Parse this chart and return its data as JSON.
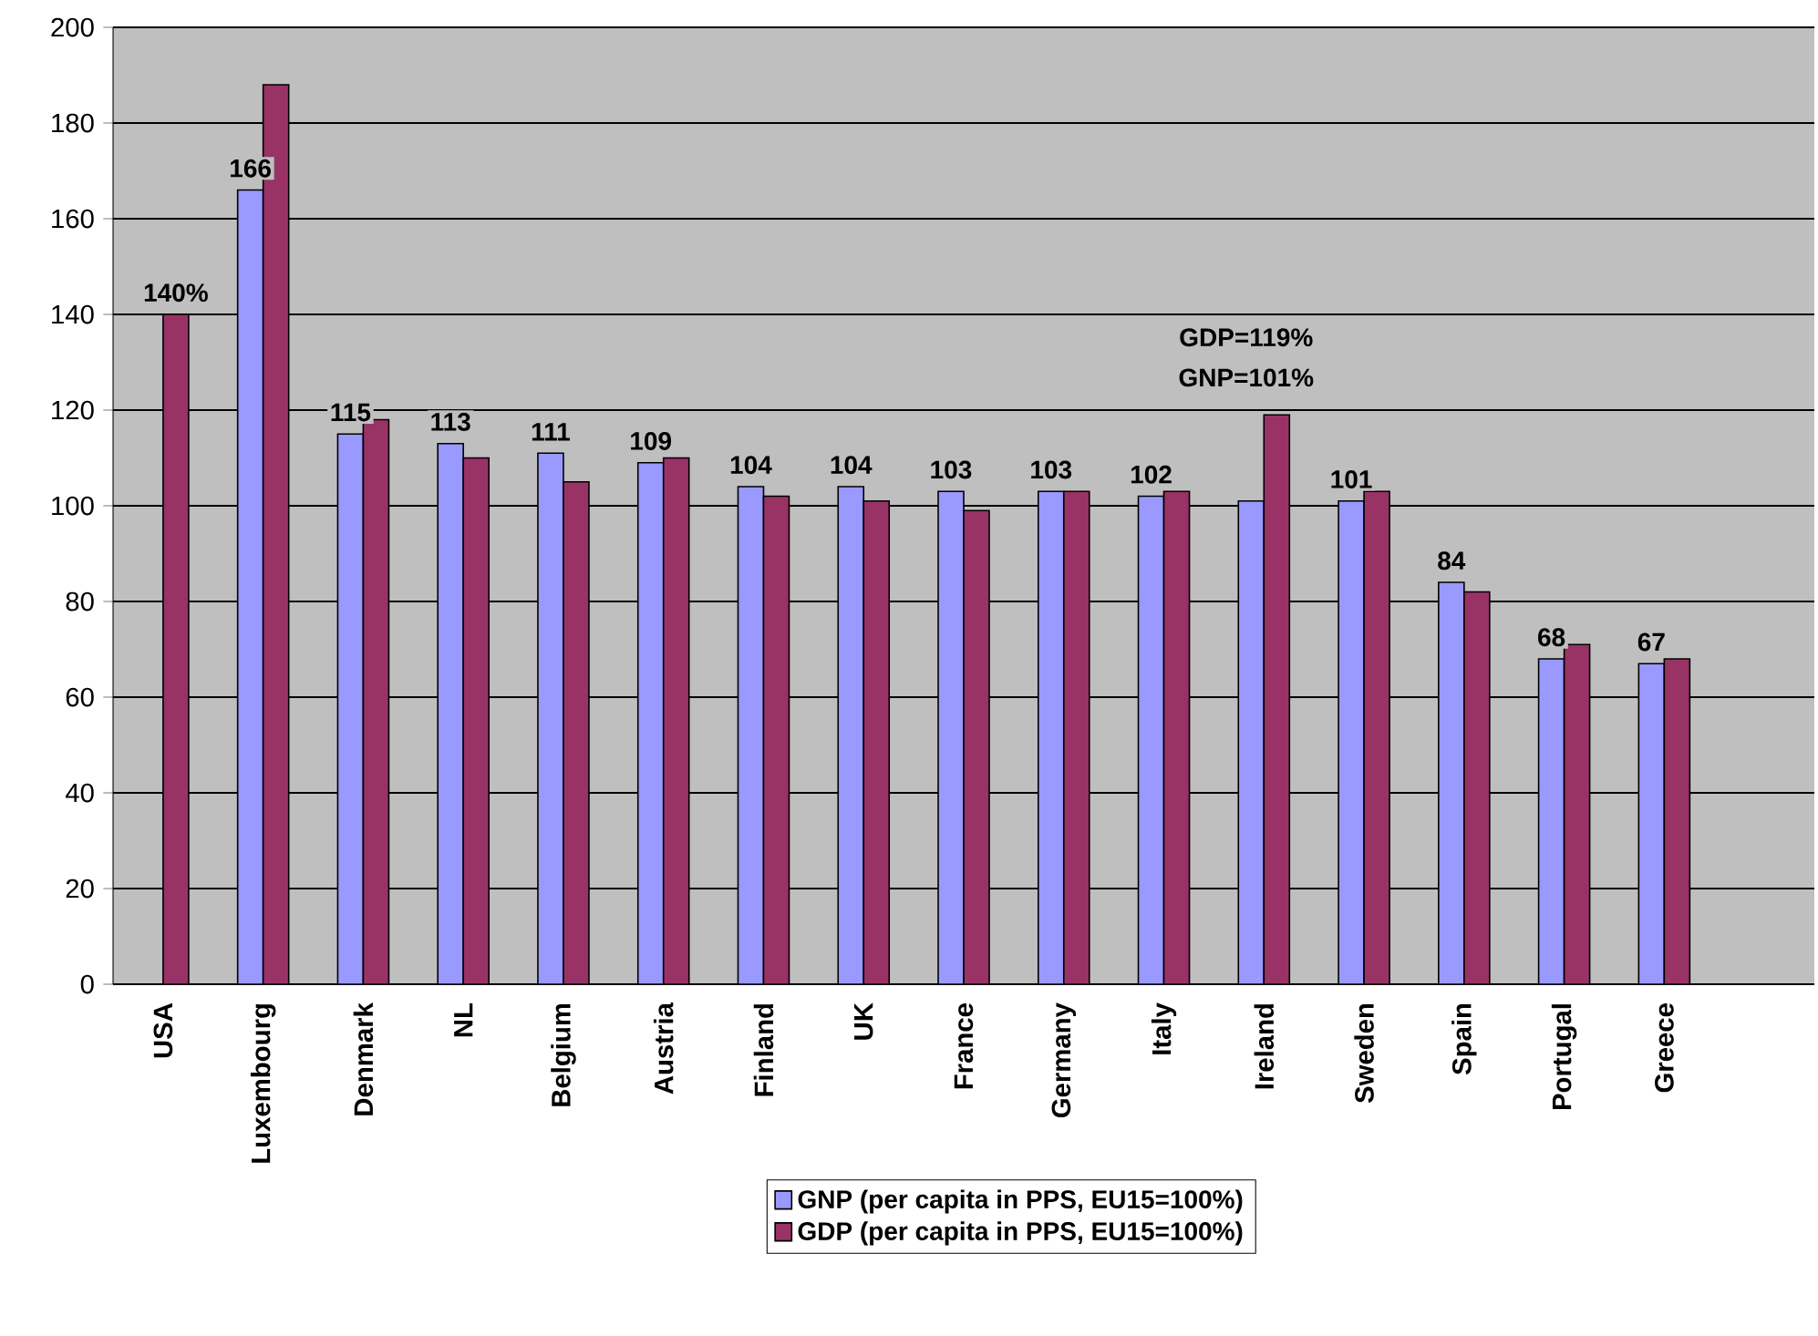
{
  "chart_data": {
    "type": "bar",
    "categories": [
      "USA",
      "Luxembourg",
      "Denmark",
      "NL",
      "Belgium",
      "Austria",
      "Finland",
      "UK",
      "France",
      "Germany",
      "Italy",
      "Ireland",
      "Sweden",
      "Spain",
      "Portugal",
      "Greece",
      null
    ],
    "series": [
      {
        "name": "GNP (per capita in PPS, EU15=100%)",
        "color": "#9999ff",
        "values": [
          null,
          166,
          115,
          113,
          111,
          109,
          104,
          104,
          103,
          103,
          102,
          101,
          101,
          84,
          68,
          67,
          null
        ],
        "value_labels": [
          null,
          "166",
          "115",
          "113",
          "111",
          "109",
          "104",
          "104",
          "103",
          "103",
          "102",
          null,
          "101",
          "84",
          "68",
          "67",
          null
        ]
      },
      {
        "name": "GDP (per capita in PPS, EU15=100%)",
        "color": "#993366",
        "values": [
          140,
          188,
          118,
          110,
          105,
          110,
          102,
          101,
          99,
          103,
          103,
          119,
          103,
          82,
          71,
          68,
          null
        ],
        "value_labels": [
          "140%",
          null,
          null,
          null,
          null,
          null,
          null,
          null,
          null,
          null,
          null,
          null,
          null,
          null,
          null,
          null,
          null
        ]
      }
    ],
    "annotations": [
      "GDP=119%",
      "GNP=101%"
    ],
    "ylim": [
      0,
      200
    ],
    "yticks": [
      0,
      20,
      40,
      60,
      80,
      100,
      120,
      140,
      160,
      180,
      200
    ],
    "grid": "y",
    "legend": "bottom"
  }
}
